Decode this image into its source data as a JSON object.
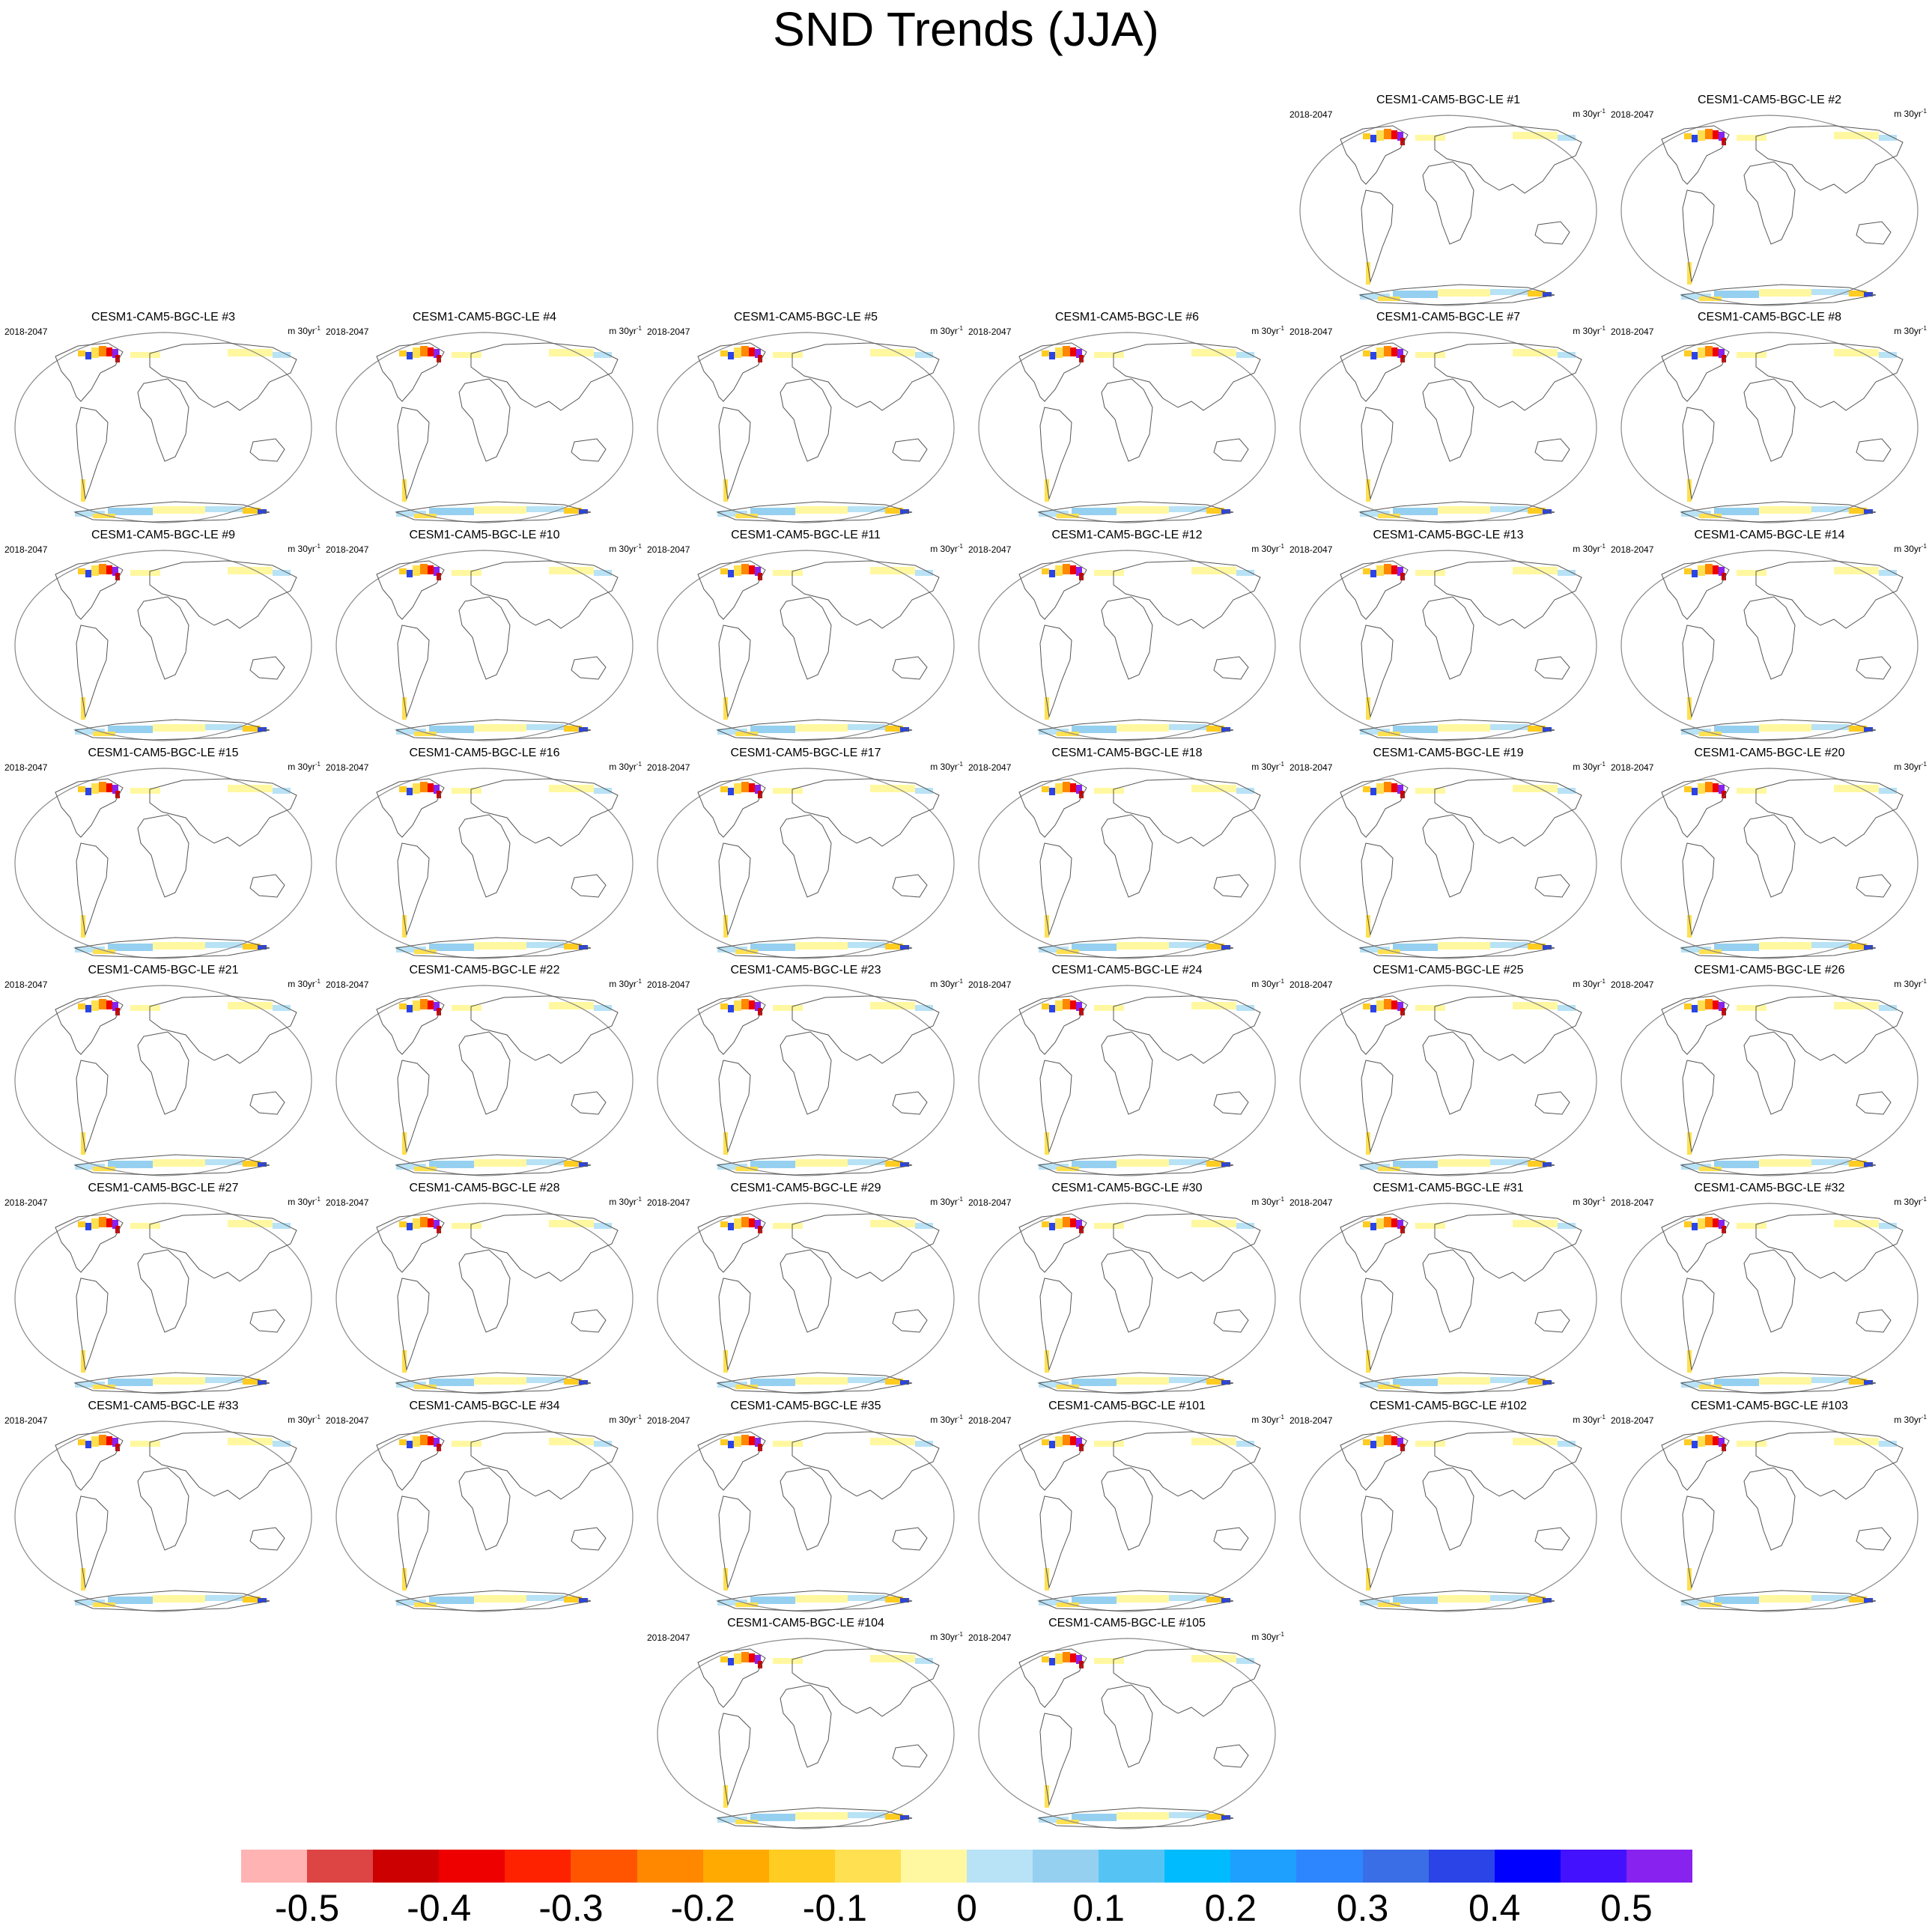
{
  "title": "SND Trends (JJA)",
  "period": "2018-2047",
  "units_prefix": "m 30yr",
  "units_exponent": "-1",
  "map_type": "Robinson projection global maps",
  "panels": [
    "CESM1-CAM5-BGC-LE #1",
    "CESM1-CAM5-BGC-LE #2",
    "CESM1-CAM5-BGC-LE #3",
    "CESM1-CAM5-BGC-LE #4",
    "CESM1-CAM5-BGC-LE #5",
    "CESM1-CAM5-BGC-LE #6",
    "CESM1-CAM5-BGC-LE #7",
    "CESM1-CAM5-BGC-LE #8",
    "CESM1-CAM5-BGC-LE #9",
    "CESM1-CAM5-BGC-LE #10",
    "CESM1-CAM5-BGC-LE #11",
    "CESM1-CAM5-BGC-LE #12",
    "CESM1-CAM5-BGC-LE #13",
    "CESM1-CAM5-BGC-LE #14",
    "CESM1-CAM5-BGC-LE #15",
    "CESM1-CAM5-BGC-LE #16",
    "CESM1-CAM5-BGC-LE #17",
    "CESM1-CAM5-BGC-LE #18",
    "CESM1-CAM5-BGC-LE #19",
    "CESM1-CAM5-BGC-LE #20",
    "CESM1-CAM5-BGC-LE #21",
    "CESM1-CAM5-BGC-LE #22",
    "CESM1-CAM5-BGC-LE #23",
    "CESM1-CAM5-BGC-LE #24",
    "CESM1-CAM5-BGC-LE #25",
    "CESM1-CAM5-BGC-LE #26",
    "CESM1-CAM5-BGC-LE #27",
    "CESM1-CAM5-BGC-LE #28",
    "CESM1-CAM5-BGC-LE #29",
    "CESM1-CAM5-BGC-LE #30",
    "CESM1-CAM5-BGC-LE #31",
    "CESM1-CAM5-BGC-LE #32",
    "CESM1-CAM5-BGC-LE #33",
    "CESM1-CAM5-BGC-LE #34",
    "CESM1-CAM5-BGC-LE #35",
    "CESM1-CAM5-BGC-LE #101",
    "CESM1-CAM5-BGC-LE #102",
    "CESM1-CAM5-BGC-LE #103",
    "CESM1-CAM5-BGC-LE #104",
    "CESM1-CAM5-BGC-LE #105"
  ],
  "colorbar": {
    "colors": [
      "#ffb3b3",
      "#dd4444",
      "#cc0000",
      "#ee0000",
      "#ff2200",
      "#ff5500",
      "#ff8800",
      "#ffaa00",
      "#ffcc22",
      "#ffe050",
      "#fff8a0",
      "#b8e2f6",
      "#96d0f0",
      "#55c4f4",
      "#00bcff",
      "#1ea0ff",
      "#2e86ff",
      "#3a6ee6",
      "#2a44e8",
      "#0000ff",
      "#4411ff",
      "#8822ee"
    ],
    "labels": [
      "-0.5",
      "-0.4",
      "-0.3",
      "-0.2",
      "-0.1",
      "0",
      "0.1",
      "0.2",
      "0.3",
      "0.4",
      "0.5"
    ]
  }
}
